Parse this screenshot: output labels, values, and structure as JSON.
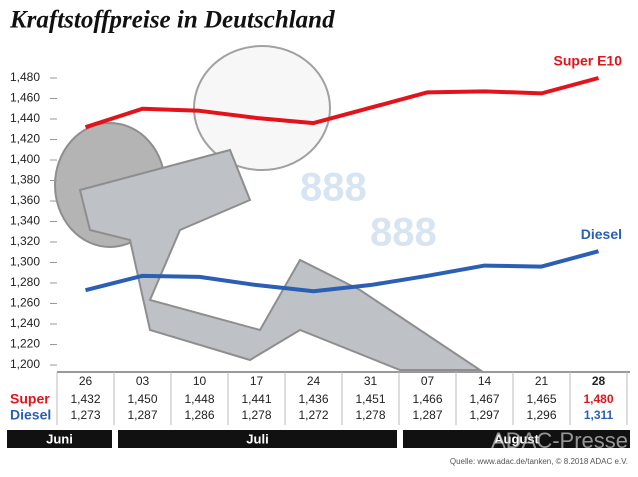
{
  "chart_data": {
    "type": "line",
    "title": "Kraftstoffpreise in Deutschland",
    "categories": [
      "26",
      "03",
      "10",
      "17",
      "24",
      "31",
      "07",
      "14",
      "21",
      "28"
    ],
    "series": [
      {
        "name": "Super E10",
        "color": "#e2131b",
        "values": [
          1.432,
          1.45,
          1.448,
          1.441,
          1.436,
          1.451,
          1.466,
          1.467,
          1.465,
          1.48
        ],
        "value_labels": [
          "1,432",
          "1,450",
          "1,448",
          "1,441",
          "1,436",
          "1,451",
          "1,466",
          "1,467",
          "1,465",
          "1,480"
        ]
      },
      {
        "name": "Diesel",
        "color": "#2b5fb4",
        "values": [
          1.273,
          1.287,
          1.286,
          1.278,
          1.272,
          1.278,
          1.287,
          1.297,
          1.296,
          1.311
        ],
        "value_labels": [
          "1,273",
          "1,287",
          "1,286",
          "1,278",
          "1,272",
          "1,278",
          "1,287",
          "1,297",
          "1,296",
          "1,311"
        ]
      }
    ],
    "table_row_labels": [
      "Super",
      "Diesel"
    ],
    "months": [
      "Juni",
      "Juli",
      "August"
    ],
    "ylim": [
      1.2,
      1.48
    ],
    "yticks": [
      {
        "value": 1.2,
        "label": "1,200"
      },
      {
        "value": 1.22,
        "label": "1,220"
      },
      {
        "value": 1.24,
        "label": "1,240"
      },
      {
        "value": 1.26,
        "label": "1,260"
      },
      {
        "value": 1.28,
        "label": "1,280"
      },
      {
        "value": 1.3,
        "label": "1,300"
      },
      {
        "value": 1.32,
        "label": "1,320"
      },
      {
        "value": 1.34,
        "label": "1,340"
      },
      {
        "value": 1.36,
        "label": "1,360"
      },
      {
        "value": 1.38,
        "label": "1,380"
      },
      {
        "value": 1.4,
        "label": "1,400"
      },
      {
        "value": 1.42,
        "label": "1,420"
      },
      {
        "value": 1.44,
        "label": "1,440"
      },
      {
        "value": 1.46,
        "label": "1,460"
      },
      {
        "value": 1.48,
        "label": "1,480"
      }
    ],
    "grid": false,
    "source": "Quelle: www.adac.de/tanken, © 8.2018 ADAC e.V.",
    "watermark": "ADAC-Presse"
  }
}
